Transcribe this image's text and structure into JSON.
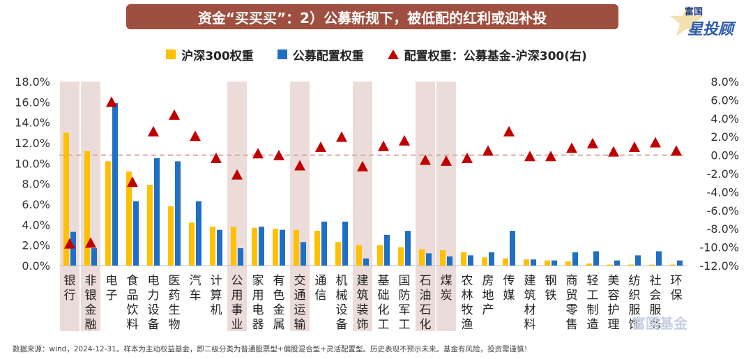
{
  "title": "资金“买买买”：2）公募新规下，被低配的红利或迎补投",
  "logo": {
    "top": "富国",
    "main": "星投顾",
    "icon": "star-icon"
  },
  "watermark": "富国基金",
  "footnote": "数据来源：wind，2024-12-31。样本为主动权益基金，即二级分类为普通股票型+偏股混合型+灵活配置型。历史表现不预示未来。基金有风险，投资需谨慎！",
  "colors": {
    "title_bg": "#9e4f3f",
    "series_hs300": "#ffc000",
    "series_fund": "#1f6fc5",
    "triangle": "#c00000",
    "highlight": "#ecdcd9",
    "zero_line": "#d9a9a3"
  },
  "legend": [
    {
      "label": "沪深300权重",
      "marker": "bar"
    },
    {
      "label": "公募配置权重",
      "marker": "bar"
    },
    {
      "label": "配置权重：公募基金-沪深300(右)",
      "marker": "triangle"
    }
  ],
  "chart_data": {
    "type": "bar",
    "categories": [
      "银行",
      "非银金融",
      "电子",
      "食品饮料",
      "电力设备",
      "医药生物",
      "汽车",
      "计算机",
      "公用事业",
      "家用电器",
      "有色金属",
      "交通运输",
      "通信",
      "机械设备",
      "建筑装饰",
      "基础化工",
      "国防军工",
      "石油石化",
      "煤炭",
      "农林牧渔",
      "房地产",
      "传媒",
      "建筑材料",
      "钢铁",
      "商贸零售",
      "轻工制造",
      "美容护理",
      "纺织服饰",
      "社会服务",
      "环保"
    ],
    "highlighted": [
      "银行",
      "非银金融",
      "公用事业",
      "交通运输",
      "建筑装饰",
      "石油石化",
      "煤炭"
    ],
    "series": [
      {
        "name": "沪深300权重",
        "axis": "left",
        "type": "bar",
        "values": [
          13.0,
          11.2,
          10.2,
          9.2,
          7.9,
          5.8,
          4.2,
          3.8,
          3.8,
          3.7,
          3.6,
          3.5,
          3.4,
          2.3,
          2.0,
          2.0,
          1.8,
          1.6,
          1.5,
          1.3,
          0.8,
          0.7,
          0.6,
          0.5,
          0.4,
          0.2,
          0.1,
          0.1,
          0.1,
          0.1
        ]
      },
      {
        "name": "公募配置权重",
        "axis": "left",
        "type": "bar",
        "values": [
          3.3,
          1.7,
          15.9,
          6.3,
          10.5,
          10.2,
          6.3,
          3.5,
          1.7,
          3.8,
          3.5,
          2.3,
          4.3,
          4.3,
          0.7,
          3.0,
          3.4,
          1.2,
          0.9,
          1.0,
          1.3,
          3.4,
          0.6,
          0.5,
          1.3,
          1.4,
          0.5,
          1.0,
          1.4,
          0.5
        ]
      },
      {
        "name": "配置权重：公募基金-沪深300(右)",
        "axis": "right",
        "type": "scatter",
        "values": [
          -9.7,
          -9.6,
          5.7,
          -3.0,
          2.5,
          4.3,
          2.0,
          -0.4,
          -2.2,
          0.1,
          -0.1,
          -1.2,
          0.8,
          1.9,
          -1.3,
          0.9,
          1.5,
          -0.6,
          -0.7,
          -0.4,
          0.4,
          2.5,
          -0.2,
          -0.2,
          0.7,
          1.2,
          0.3,
          0.8,
          1.3,
          0.4
        ]
      }
    ],
    "y_left": {
      "ylim": [
        0,
        18
      ],
      "ticks": [
        "0.0%",
        "2.0%",
        "4.0%",
        "6.0%",
        "8.0%",
        "10.0%",
        "12.0%",
        "14.0%",
        "16.0%",
        "18.0%"
      ]
    },
    "y_right": {
      "ylim": [
        -12,
        8
      ],
      "ticks": [
        "-12.0%",
        "-10.0%",
        "-8.0%",
        "-6.0%",
        "-4.0%",
        "-2.0%",
        "0.0%",
        "2.0%",
        "4.0%",
        "6.0%",
        "8.0%"
      ]
    }
  }
}
